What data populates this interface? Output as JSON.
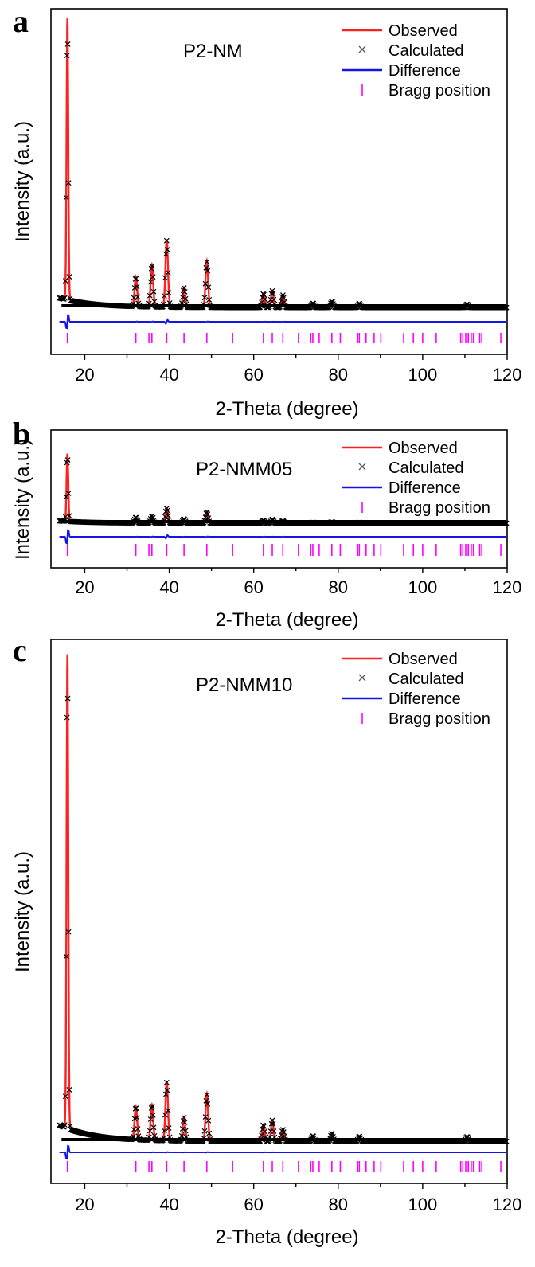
{
  "colors": {
    "observed": "#ff2020",
    "calculated": "#000000",
    "difference": "#1414e6",
    "bragg": "#ff00ff",
    "axis": "#000000"
  },
  "legend": {
    "observed": "Observed",
    "calculated": "Calculated",
    "difference": "Difference",
    "bragg": "Bragg position"
  },
  "chart_data": [
    {
      "type": "line",
      "panel_letter": "a",
      "sample_label": "P2-NM",
      "xlabel": "2-Theta (degree)",
      "ylabel": "Intensity (a.u.)",
      "xlim": [
        12,
        120
      ],
      "ylim": [
        0,
        100
      ],
      "x_ticks": [
        20,
        40,
        60,
        80,
        100,
        120
      ],
      "legend_position": "top-right",
      "grid": false,
      "background": 4.5,
      "peaks": [
        {
          "x": 15.9,
          "y": 100
        },
        {
          "x": 32.1,
          "y": 10.5
        },
        {
          "x": 35.9,
          "y": 15
        },
        {
          "x": 39.4,
          "y": 24
        },
        {
          "x": 43.5,
          "y": 7
        },
        {
          "x": 48.9,
          "y": 16.5
        },
        {
          "x": 62.3,
          "y": 5
        },
        {
          "x": 64.4,
          "y": 6
        },
        {
          "x": 66.9,
          "y": 4.5
        },
        {
          "x": 74.0,
          "y": 1.6
        },
        {
          "x": 78.5,
          "y": 2.2
        },
        {
          "x": 85.0,
          "y": 1.5
        },
        {
          "x": 110.5,
          "y": 1.2
        }
      ],
      "difference_offset": -4.5,
      "bragg_positions": [
        15.9,
        32.1,
        35.2,
        35.9,
        39.4,
        43.5,
        48.9,
        55.0,
        62.3,
        64.4,
        66.9,
        70.6,
        73.5,
        74.0,
        75.5,
        78.5,
        80.5,
        84.6,
        85.0,
        86.6,
        88.5,
        90.1,
        95.5,
        97.8,
        100.0,
        103.2,
        109.0,
        109.5,
        110.2,
        110.8,
        111.5,
        112.0,
        113.5,
        114.0,
        118.5
      ]
    },
    {
      "type": "line",
      "panel_letter": "b",
      "sample_label": "P2-NMM05",
      "xlabel": "2-Theta (degree)",
      "ylabel": "Intensity (a.u.)",
      "xlim": [
        12,
        120
      ],
      "ylim": [
        0,
        100
      ],
      "x_ticks": [
        20,
        40,
        60,
        80,
        100,
        120
      ],
      "legend_position": "top-right",
      "grid": false,
      "background": 4.0,
      "peaks": [
        {
          "x": 15.9,
          "y": 100
        },
        {
          "x": 32.1,
          "y": 8.5
        },
        {
          "x": 35.9,
          "y": 11
        },
        {
          "x": 39.4,
          "y": 22
        },
        {
          "x": 43.5,
          "y": 6.5
        },
        {
          "x": 48.9,
          "y": 17
        },
        {
          "x": 62.3,
          "y": 4.5
        },
        {
          "x": 64.4,
          "y": 6
        },
        {
          "x": 66.9,
          "y": 3.5
        },
        {
          "x": 74.0,
          "y": 1.4
        },
        {
          "x": 78.5,
          "y": 2
        },
        {
          "x": 85.0,
          "y": 1.3
        },
        {
          "x": 110.5,
          "y": 1.1
        }
      ],
      "difference_offset": -3.6,
      "bragg_positions": [
        15.9,
        32.1,
        35.2,
        35.9,
        39.4,
        43.5,
        48.9,
        55.0,
        62.3,
        64.4,
        66.9,
        70.6,
        73.5,
        74.0,
        75.5,
        78.5,
        80.5,
        84.6,
        85.0,
        86.6,
        88.5,
        90.1,
        95.5,
        97.8,
        100.0,
        103.2,
        109.0,
        109.5,
        110.2,
        110.8,
        111.5,
        112.0,
        113.5,
        114.0,
        118.5
      ]
    },
    {
      "type": "line",
      "panel_letter": "c",
      "sample_label": "P2-NMM10",
      "xlabel": "2-Theta (degree)",
      "ylabel": "Intensity (a.u.)",
      "xlim": [
        12,
        120
      ],
      "ylim": [
        0,
        100
      ],
      "x_ticks": [
        20,
        40,
        60,
        80,
        100,
        120
      ],
      "legend_position": "top-right",
      "grid": false,
      "background": 3.0,
      "peaks": [
        {
          "x": 15.9,
          "y": 100
        },
        {
          "x": 32.1,
          "y": 7
        },
        {
          "x": 35.9,
          "y": 7.5
        },
        {
          "x": 39.4,
          "y": 12.5
        },
        {
          "x": 43.5,
          "y": 5
        },
        {
          "x": 48.9,
          "y": 10
        },
        {
          "x": 62.3,
          "y": 3.5
        },
        {
          "x": 64.4,
          "y": 4.5
        },
        {
          "x": 66.9,
          "y": 2.5
        },
        {
          "x": 74.0,
          "y": 1.2
        },
        {
          "x": 78.5,
          "y": 1.7
        },
        {
          "x": 85.0,
          "y": 1.1
        },
        {
          "x": 110.5,
          "y": 1.0
        }
      ],
      "difference_offset": -3.0,
      "bragg_positions": [
        15.9,
        32.1,
        35.2,
        35.9,
        39.4,
        43.5,
        48.9,
        55.0,
        62.3,
        64.4,
        66.9,
        70.6,
        73.5,
        74.0,
        75.5,
        78.5,
        80.5,
        84.6,
        85.0,
        86.6,
        88.5,
        90.1,
        95.5,
        97.8,
        100.0,
        103.2,
        109.0,
        109.5,
        110.2,
        110.8,
        111.5,
        112.0,
        113.5,
        114.0,
        118.5
      ]
    }
  ]
}
